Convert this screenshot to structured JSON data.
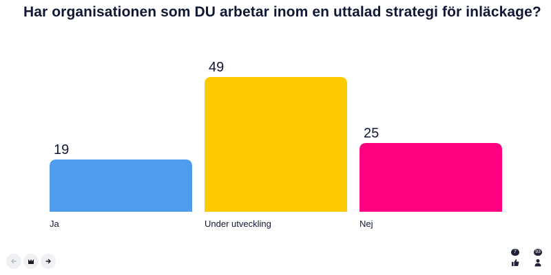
{
  "question": "Har organisationen som DU arbetar inom en uttalad strategi för inläckage?",
  "chart_data": {
    "type": "bar",
    "title": "Har organisationen som DU arbetar inom en uttalad strategi för inläckage?",
    "categories": [
      "Ja",
      "Under utveckling",
      "Nej"
    ],
    "values": [
      19,
      49,
      25
    ],
    "colors": [
      "#4f9cee",
      "#fdca00",
      "#ff0080"
    ],
    "grid": false,
    "legend": "none"
  },
  "footer": {
    "back_icon": "arrow-left-icon",
    "logo_icon": "m-logo-icon",
    "forward_icon": "arrow-right-icon",
    "likes_count": "7",
    "participants_count": "93",
    "likes_icon": "thumbs-up-icon",
    "participants_icon": "person-icon"
  }
}
